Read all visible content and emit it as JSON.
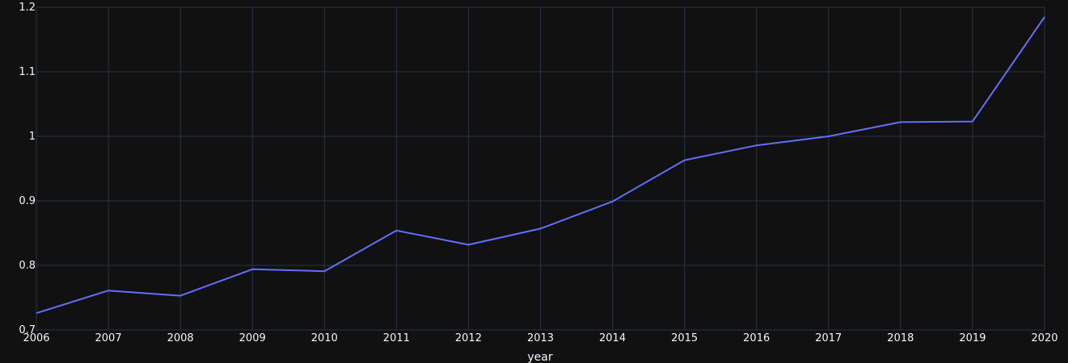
{
  "chart_data": {
    "type": "line",
    "title": "",
    "xlabel": "year",
    "ylabel": "",
    "x": [
      2006,
      2007,
      2008,
      2009,
      2010,
      2011,
      2012,
      2013,
      2014,
      2015,
      2016,
      2017,
      2018,
      2019,
      2020
    ],
    "series": [
      {
        "color": "#636efa",
        "values": [
          0.726,
          0.761,
          0.753,
          0.794,
          0.791,
          0.854,
          0.832,
          0.857,
          0.899,
          0.963,
          0.986,
          1.0,
          1.022,
          1.023,
          1.185
        ]
      }
    ],
    "xlim": [
      2006,
      2020
    ],
    "ylim": [
      0.7,
      1.2
    ],
    "xticks": [
      "2006",
      "2007",
      "2008",
      "2009",
      "2010",
      "2011",
      "2012",
      "2013",
      "2014",
      "2015",
      "2016",
      "2017",
      "2018",
      "2019",
      "2020"
    ],
    "yticks": [
      {
        "value": 0.7,
        "label": "0.7"
      },
      {
        "value": 0.8,
        "label": "0.8"
      },
      {
        "value": 0.9,
        "label": "0.9"
      },
      {
        "value": 1.0,
        "label": "1"
      },
      {
        "value": 1.1,
        "label": "1.1"
      },
      {
        "value": 1.2,
        "label": "1.2"
      }
    ],
    "grid": true,
    "background": "#111111",
    "gridColor": "#283442",
    "textColor": "#f2f5fa"
  }
}
